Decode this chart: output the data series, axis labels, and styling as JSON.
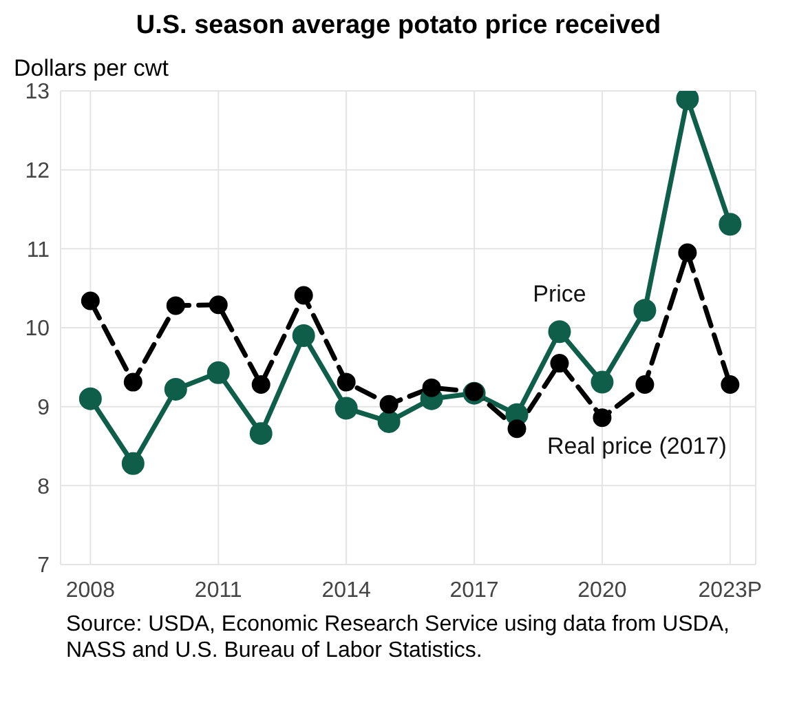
{
  "chart_data": {
    "type": "line",
    "title": "U.S. season average potato price received",
    "ylabel": "Dollars per cwt",
    "x": [
      2008,
      2009,
      2010,
      2011,
      2012,
      2013,
      2014,
      2015,
      2016,
      2017,
      2018,
      2019,
      2020,
      2021,
      2022,
      2023
    ],
    "series": [
      {
        "name": "Price",
        "color": "#0e5e4a",
        "line_style": "solid",
        "values": [
          9.1,
          8.28,
          9.22,
          9.43,
          8.66,
          9.9,
          8.98,
          8.81,
          9.1,
          9.17,
          8.9,
          9.95,
          9.31,
          10.22,
          12.9,
          11.31
        ]
      },
      {
        "name": "Real price (2017)",
        "color": "#000000",
        "line_style": "dashed",
        "values": [
          10.34,
          9.31,
          10.28,
          10.29,
          9.28,
          10.41,
          9.31,
          9.03,
          9.24,
          9.19,
          8.72,
          9.55,
          8.86,
          9.28,
          10.95,
          9.28
        ]
      }
    ],
    "xlim": [
      2007.3,
      2023.6
    ],
    "xticks": [
      2008,
      2011,
      2014,
      2017,
      2020,
      {
        "value": 2023,
        "label": "2023P"
      }
    ],
    "ylim": [
      7,
      13
    ],
    "yticks": [
      7,
      8,
      9,
      10,
      11,
      12,
      13
    ],
    "grid": true,
    "legend": false,
    "marker": "circle",
    "annotations": [
      "Source: USDA, Economic Research Service using data from USDA, NASS and U.S. Bureau of Labor Statistics."
    ]
  }
}
